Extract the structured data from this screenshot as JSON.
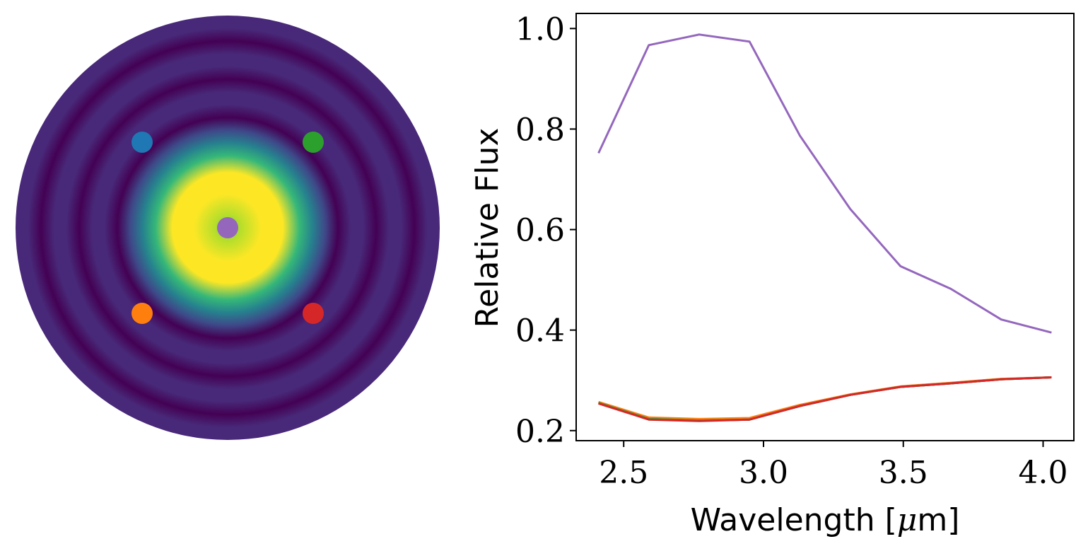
{
  "chart_data": [
    {
      "type": "heatmap",
      "shape": "circular-aperture",
      "colormap": "viridis",
      "colormap_stops": [
        "#440154",
        "#482878",
        "#3e4989",
        "#31688e",
        "#26828e",
        "#1f9e89",
        "#35b779",
        "#6ece58",
        "#b5de2b",
        "#fde725"
      ],
      "markers": [
        {
          "position": "upper-left",
          "color": "#1f77b4"
        },
        {
          "position": "upper-right",
          "color": "#2ca02c"
        },
        {
          "position": "center",
          "color": "#9467bd"
        },
        {
          "position": "lower-left",
          "color": "#ff7f0e"
        },
        {
          "position": "lower-right",
          "color": "#d62728"
        }
      ]
    },
    {
      "type": "line",
      "xlabel": "Wavelength [",
      "xlabel_mu": "μ",
      "xlabel_tail": "m]",
      "ylabel": "Relative Flux",
      "xlim": [
        2.33,
        4.11
      ],
      "ylim": [
        0.18,
        1.03
      ],
      "xticks": [
        "2.5",
        "3.0",
        "3.5",
        "4.0"
      ],
      "yticks": [
        "0.2",
        "0.4",
        "0.6",
        "0.8",
        "1.0"
      ],
      "grid": false,
      "x": [
        2.41,
        2.59,
        2.77,
        2.95,
        3.13,
        3.31,
        3.49,
        3.67,
        3.85,
        4.03
      ],
      "series": [
        {
          "color": "#9467bd",
          "values": [
            0.752,
            0.967,
            0.988,
            0.974,
            0.787,
            0.641,
            0.527,
            0.482,
            0.421,
            0.395
          ]
        },
        {
          "color": "#ff7f0e",
          "values": [
            0.257,
            0.226,
            0.223,
            0.225,
            0.251,
            0.272,
            0.288,
            0.295,
            0.303,
            0.306
          ]
        },
        {
          "color": "#1f77b4",
          "values": [
            0.255,
            0.223,
            0.22,
            0.222,
            0.249,
            0.271,
            0.287,
            0.294,
            0.302,
            0.306
          ]
        },
        {
          "color": "#2ca02c",
          "values": [
            0.255,
            0.223,
            0.22,
            0.222,
            0.249,
            0.271,
            0.287,
            0.294,
            0.302,
            0.306
          ]
        },
        {
          "color": "#d62728",
          "values": [
            0.254,
            0.222,
            0.219,
            0.222,
            0.249,
            0.271,
            0.287,
            0.294,
            0.302,
            0.306
          ]
        }
      ]
    }
  ]
}
